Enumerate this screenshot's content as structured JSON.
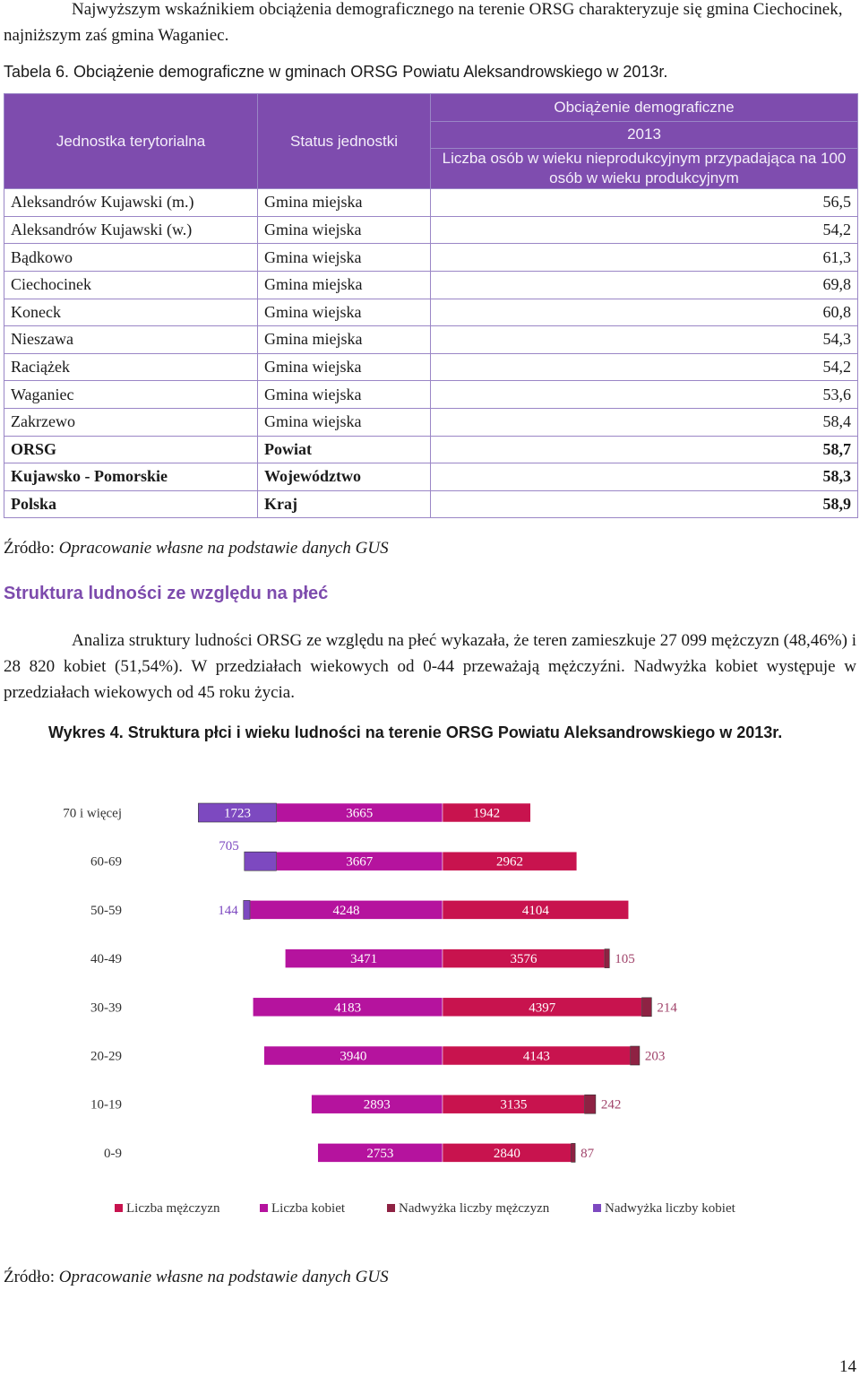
{
  "intro_text": "Najwyższym wskaźnikiem obciążenia demograficznego na terenie ORSG charakteryzuje się gmina Ciechocinek, najniższym zaś gmina Waganiec.",
  "table_caption": "Tabela 6. Obciążenie demograficzne w gminach ORSG Powiatu Aleksandrowskiego w 2013r.",
  "table": {
    "header_unit": "Jednostka terytorialna",
    "header_status": "Status jednostki",
    "header_group": "Obciążenie demograficzne",
    "header_year": "2013",
    "header_measure": "Liczba osób w wieku nieprodukcyjnym przypadająca na 100 osób w wieku produkcyjnym",
    "rows": [
      {
        "unit": "Aleksandrów Kujawski (m.)",
        "status": "Gmina miejska",
        "value": "56,5",
        "bold": false
      },
      {
        "unit": "Aleksandrów Kujawski (w.)",
        "status": "Gmina wiejska",
        "value": "54,2",
        "bold": false
      },
      {
        "unit": "Bądkowo",
        "status": "Gmina wiejska",
        "value": "61,3",
        "bold": false
      },
      {
        "unit": "Ciechocinek",
        "status": "Gmina miejska",
        "value": "69,8",
        "bold": false
      },
      {
        "unit": "Koneck",
        "status": "Gmina wiejska",
        "value": "60,8",
        "bold": false
      },
      {
        "unit": "Nieszawa",
        "status": "Gmina miejska",
        "value": "54,3",
        "bold": false
      },
      {
        "unit": "Raciążek",
        "status": "Gmina wiejska",
        "value": "54,2",
        "bold": false
      },
      {
        "unit": "Waganiec",
        "status": "Gmina wiejska",
        "value": "53,6",
        "bold": false
      },
      {
        "unit": "Zakrzewo",
        "status": "Gmina wiejska",
        "value": "58,4",
        "bold": false
      },
      {
        "unit": "ORSG",
        "status": "Powiat",
        "value": "58,7",
        "bold": true
      },
      {
        "unit": "Kujawsko - Pomorskie",
        "status": "Województwo",
        "value": "58,3",
        "bold": true
      },
      {
        "unit": "Polska",
        "status": "Kraj",
        "value": "58,9",
        "bold": true
      }
    ]
  },
  "source_label": "Źródło: ",
  "source_text": "Opracowanie własne na podstawie danych GUS",
  "section_title": "Struktura ludności ze względu na płeć",
  "paragraph": "Analiza struktury ludności ORSG ze względu na płeć wykazała, że teren zamieszkuje 27 099 mężczyzn (48,46%) i 28 820 kobiet (51,54%). W przedziałach wiekowych od 0-44 przeważają mężczyźni. Nadwyżka kobiet występuje w przedziałach wiekowych od 45 roku życia.",
  "chart_caption": "Wykres 4. Struktura płci i wieku ludności na terenie ORSG Powiatu Aleksandrowskiego w 2013r.",
  "chart_data": {
    "type": "bar",
    "orientation": "horizontal-stacked",
    "categories": [
      "70 i więcej",
      "60-69",
      "50-59",
      "40-49",
      "30-39",
      "20-29",
      "10-19",
      "0-9"
    ],
    "series": [
      {
        "name": "Liczba mężczyzn",
        "color": "#c8134e",
        "values": [
          1942,
          2962,
          4104,
          3576,
          4397,
          4143,
          3135,
          2840
        ]
      },
      {
        "name": "Liczba kobiet",
        "color": "#b5139e",
        "values": [
          3665,
          3667,
          4248,
          3471,
          4183,
          3940,
          2893,
          2753
        ]
      },
      {
        "name": "Nadwyżka liczby mężczyzn",
        "color": "#8e2243",
        "values": [
          null,
          null,
          null,
          105,
          214,
          203,
          242,
          87
        ]
      },
      {
        "name": "Nadwyżka liczby kobiet",
        "color": "#7d49c0",
        "values": [
          1723,
          705,
          144,
          null,
          null,
          null,
          null,
          null
        ]
      }
    ],
    "title": "",
    "xlabel": "",
    "ylabel": "",
    "grid": false,
    "legend": "bottom"
  },
  "page_number": "14"
}
